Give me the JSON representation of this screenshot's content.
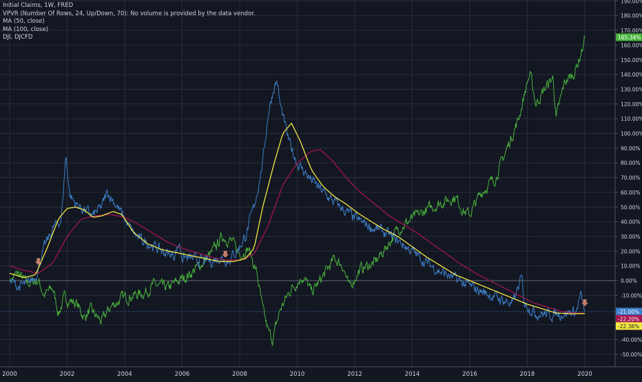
{
  "legend": {
    "title": "Initial Claims, 1W, FRED",
    "vpvr": "VPVR (Number Of Rows, 24, Up/Down, 70): No volume is provided by the data vendor.",
    "ma50": "MA (50, close)",
    "ma100": "MA (100, close)",
    "dji": "DJI, DJCFD"
  },
  "colors": {
    "background": "#131722",
    "grid": "#2a2e39",
    "text": "#d1d4dc",
    "claims": "#3d7fc9",
    "ma50": "#f5e945",
    "ma100": "#a3154f",
    "dji": "#4ab43c",
    "arrow": "#c47f6d"
  },
  "chart_data": {
    "type": "line",
    "x_ticks": [
      "2000",
      "2002",
      "2004",
      "2006",
      "2008",
      "2010",
      "2012",
      "2014",
      "2016",
      "2018",
      "2020"
    ],
    "y_ticks": [
      "190.00%",
      "180.00%",
      "170.00%",
      "160.00%",
      "150.00%",
      "140.00%",
      "130.00%",
      "120.00%",
      "110.00%",
      "100.00%",
      "90.00%",
      "80.00%",
      "70.00%",
      "60.00%",
      "50.00%",
      "40.00%",
      "30.00%",
      "20.00%",
      "10.00%",
      "0.00%",
      "-10.00%",
      "-30.00%",
      "-40.00%",
      "-50.00%"
    ],
    "xlim": [
      2000,
      2021
    ],
    "ylim": [
      -60,
      195
    ],
    "scale": "percent",
    "grid": true,
    "legend_position": "top-left",
    "series": [
      {
        "name": "Initial Claims, 1W, FRED",
        "key": "claims",
        "style": "noisy",
        "last_label": "-21.00%",
        "points": [
          [
            2000,
            0
          ],
          [
            2000.3,
            -4
          ],
          [
            2000.6,
            -3
          ],
          [
            2000.9,
            3
          ],
          [
            2001.0,
            10
          ],
          [
            2001.2,
            22
          ],
          [
            2001.5,
            35
          ],
          [
            2001.8,
            42
          ],
          [
            2001.95,
            85
          ],
          [
            2002.1,
            58
          ],
          [
            2002.3,
            52
          ],
          [
            2002.6,
            48
          ],
          [
            2002.9,
            44
          ],
          [
            2003.2,
            50
          ],
          [
            2003.4,
            60
          ],
          [
            2003.6,
            55
          ],
          [
            2003.9,
            45
          ],
          [
            2004.2,
            35
          ],
          [
            2004.5,
            28
          ],
          [
            2004.9,
            25
          ],
          [
            2005.3,
            20
          ],
          [
            2005.7,
            17
          ],
          [
            2005.9,
            25
          ],
          [
            2006.0,
            16
          ],
          [
            2006.5,
            14
          ],
          [
            2007.0,
            13
          ],
          [
            2007.3,
            16
          ],
          [
            2007.6,
            14
          ],
          [
            2007.9,
            20
          ],
          [
            2008.2,
            30
          ],
          [
            2008.5,
            50
          ],
          [
            2008.8,
            80
          ],
          [
            2009.0,
            115
          ],
          [
            2009.2,
            132
          ],
          [
            2009.3,
            136
          ],
          [
            2009.4,
            120
          ],
          [
            2009.7,
            95
          ],
          [
            2010.0,
            80
          ],
          [
            2010.5,
            68
          ],
          [
            2011.0,
            58
          ],
          [
            2011.5,
            50
          ],
          [
            2012.0,
            42
          ],
          [
            2012.5,
            37
          ],
          [
            2013.0,
            33
          ],
          [
            2013.5,
            27
          ],
          [
            2014.0,
            20
          ],
          [
            2014.5,
            12
          ],
          [
            2015.0,
            6
          ],
          [
            2015.5,
            1
          ],
          [
            2016.0,
            -4
          ],
          [
            2016.5,
            -8
          ],
          [
            2017.0,
            -12
          ],
          [
            2017.5,
            -16
          ],
          [
            2017.8,
            2
          ],
          [
            2017.9,
            -15
          ],
          [
            2018.3,
            -22
          ],
          [
            2018.8,
            -23
          ],
          [
            2019.3,
            -22
          ],
          [
            2019.7,
            -21
          ],
          [
            2019.85,
            -10
          ],
          [
            2020.0,
            -21
          ]
        ]
      },
      {
        "name": "MA (50, close)",
        "key": "ma50",
        "style": "smooth",
        "last_label": "-22.36%",
        "points": [
          [
            2000,
            5
          ],
          [
            2000.5,
            2
          ],
          [
            2000.9,
            4
          ],
          [
            2001.3,
            22
          ],
          [
            2001.7,
            42
          ],
          [
            2002.0,
            49
          ],
          [
            2002.3,
            50
          ],
          [
            2002.6,
            48
          ],
          [
            2002.9,
            43
          ],
          [
            2003.2,
            44
          ],
          [
            2003.6,
            47
          ],
          [
            2003.9,
            45
          ],
          [
            2004.3,
            33
          ],
          [
            2004.8,
            25
          ],
          [
            2005.3,
            21
          ],
          [
            2005.8,
            19
          ],
          [
            2006.3,
            17
          ],
          [
            2006.8,
            15
          ],
          [
            2007.3,
            13
          ],
          [
            2007.8,
            13
          ],
          [
            2008.2,
            15
          ],
          [
            2008.5,
            22
          ],
          [
            2008.8,
            50
          ],
          [
            2009.2,
            80
          ],
          [
            2009.5,
            100
          ],
          [
            2009.8,
            107
          ],
          [
            2010.1,
            95
          ],
          [
            2010.5,
            75
          ],
          [
            2010.9,
            64
          ],
          [
            2011.3,
            57
          ],
          [
            2011.7,
            52
          ],
          [
            2012.1,
            46
          ],
          [
            2012.5,
            41
          ],
          [
            2013.0,
            35
          ],
          [
            2013.5,
            30
          ],
          [
            2014.0,
            23
          ],
          [
            2014.5,
            16
          ],
          [
            2015.0,
            10
          ],
          [
            2015.5,
            4
          ],
          [
            2016.0,
            0
          ],
          [
            2016.5,
            -4
          ],
          [
            2017.0,
            -8
          ],
          [
            2017.5,
            -12
          ],
          [
            2018.0,
            -16
          ],
          [
            2018.5,
            -19
          ],
          [
            2019.0,
            -22
          ],
          [
            2019.5,
            -22.5
          ],
          [
            2020.0,
            -22.36
          ]
        ]
      },
      {
        "name": "MA (100, close)",
        "key": "ma100",
        "style": "smooth",
        "last_label": "-22.20%",
        "points": [
          [
            2000,
            10
          ],
          [
            2000.5,
            7
          ],
          [
            2001.0,
            5
          ],
          [
            2001.5,
            12
          ],
          [
            2002.0,
            30
          ],
          [
            2002.5,
            42
          ],
          [
            2003.0,
            44
          ],
          [
            2003.5,
            45
          ],
          [
            2004.0,
            43
          ],
          [
            2004.5,
            38
          ],
          [
            2005.0,
            32
          ],
          [
            2005.5,
            26
          ],
          [
            2006.0,
            22
          ],
          [
            2006.5,
            19
          ],
          [
            2007.0,
            16
          ],
          [
            2007.5,
            14
          ],
          [
            2008.0,
            14
          ],
          [
            2008.5,
            18
          ],
          [
            2009.0,
            38
          ],
          [
            2009.5,
            65
          ],
          [
            2010.0,
            80
          ],
          [
            2010.5,
            88
          ],
          [
            2010.8,
            89
          ],
          [
            2011.2,
            82
          ],
          [
            2011.7,
            70
          ],
          [
            2012.2,
            60
          ],
          [
            2012.7,
            52
          ],
          [
            2013.2,
            44
          ],
          [
            2013.7,
            38
          ],
          [
            2014.2,
            32
          ],
          [
            2014.7,
            25
          ],
          [
            2015.2,
            18
          ],
          [
            2015.7,
            11
          ],
          [
            2016.2,
            5
          ],
          [
            2016.7,
            0
          ],
          [
            2017.2,
            -5
          ],
          [
            2017.7,
            -10
          ],
          [
            2018.2,
            -15
          ],
          [
            2018.7,
            -18
          ],
          [
            2019.2,
            -21
          ],
          [
            2019.7,
            -22
          ],
          [
            2020.0,
            -22.2
          ]
        ]
      },
      {
        "name": "DJI, DJCFD",
        "key": "dji",
        "style": "noisy",
        "last_label": "165.34%",
        "points": [
          [
            2000,
            0
          ],
          [
            2000.3,
            5
          ],
          [
            2000.6,
            -2
          ],
          [
            2001.0,
            0
          ],
          [
            2001.2,
            -10
          ],
          [
            2001.5,
            -5
          ],
          [
            2001.7,
            -22
          ],
          [
            2001.9,
            -12
          ],
          [
            2002.3,
            -15
          ],
          [
            2002.6,
            -25
          ],
          [
            2002.8,
            -20
          ],
          [
            2003.0,
            -24
          ],
          [
            2003.2,
            -28
          ],
          [
            2003.5,
            -18
          ],
          [
            2003.9,
            -12
          ],
          [
            2004.3,
            -10
          ],
          [
            2004.7,
            -8
          ],
          [
            2005.0,
            -3
          ],
          [
            2005.5,
            -5
          ],
          [
            2005.9,
            0
          ],
          [
            2006.3,
            5
          ],
          [
            2006.7,
            12
          ],
          [
            2007.0,
            18
          ],
          [
            2007.4,
            30
          ],
          [
            2007.7,
            27
          ],
          [
            2008.0,
            18
          ],
          [
            2008.3,
            22
          ],
          [
            2008.6,
            5
          ],
          [
            2008.8,
            -20
          ],
          [
            2009.0,
            -35
          ],
          [
            2009.15,
            -40
          ],
          [
            2009.4,
            -20
          ],
          [
            2009.8,
            -5
          ],
          [
            2010.2,
            3
          ],
          [
            2010.5,
            -8
          ],
          [
            2010.8,
            0
          ],
          [
            2011.3,
            15
          ],
          [
            2011.6,
            10
          ],
          [
            2011.8,
            -5
          ],
          [
            2012.2,
            8
          ],
          [
            2012.7,
            12
          ],
          [
            2013.0,
            20
          ],
          [
            2013.5,
            35
          ],
          [
            2014.0,
            42
          ],
          [
            2014.5,
            48
          ],
          [
            2015.0,
            53
          ],
          [
            2015.5,
            57
          ],
          [
            2015.8,
            47
          ],
          [
            2016.0,
            45
          ],
          [
            2016.4,
            60
          ],
          [
            2016.9,
            70
          ],
          [
            2017.3,
            90
          ],
          [
            2017.7,
            110
          ],
          [
            2018.0,
            135
          ],
          [
            2018.1,
            140
          ],
          [
            2018.3,
            120
          ],
          [
            2018.6,
            130
          ],
          [
            2018.9,
            138
          ],
          [
            2019.0,
            110
          ],
          [
            2019.3,
            135
          ],
          [
            2019.6,
            140
          ],
          [
            2019.8,
            150
          ],
          [
            2019.95,
            160
          ],
          [
            2020.0,
            165.34
          ]
        ]
      }
    ],
    "markers": [
      {
        "type": "arrow-down",
        "x": 2001.0,
        "y": 12
      },
      {
        "type": "arrow-down",
        "x": 2007.5,
        "y": 17
      },
      {
        "type": "arrow-down",
        "x": 2020.0,
        "y": -16
      }
    ],
    "reference_lines": [
      {
        "y": 0,
        "style": "solid"
      },
      {
        "y": -21,
        "style": "dotted",
        "color": "#3d7fc9"
      }
    ]
  }
}
